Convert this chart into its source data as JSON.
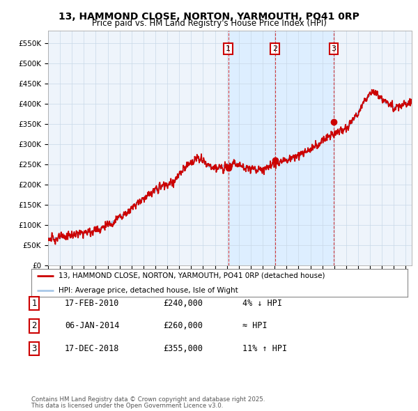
{
  "title": "13, HAMMOND CLOSE, NORTON, YARMOUTH, PO41 0RP",
  "subtitle": "Price paid vs. HM Land Registry's House Price Index (HPI)",
  "legend_line1": "13, HAMMOND CLOSE, NORTON, YARMOUTH, PO41 0RP (detached house)",
  "legend_line2": "HPI: Average price, detached house, Isle of Wight",
  "footer1": "Contains HM Land Registry data © Crown copyright and database right 2025.",
  "footer2": "This data is licensed under the Open Government Licence v3.0.",
  "transactions": [
    {
      "num": 1,
      "date": "17-FEB-2010",
      "price": "£240,000",
      "note": "4% ↓ HPI",
      "x_year": 2010.12
    },
    {
      "num": 2,
      "date": "06-JAN-2014",
      "price": "£260,000",
      "note": "≈ HPI",
      "x_year": 2014.02
    },
    {
      "num": 3,
      "date": "17-DEC-2018",
      "price": "£355,000",
      "note": "11% ↑ HPI",
      "x_year": 2018.96
    }
  ],
  "hpi_color": "#a8c8e8",
  "price_color": "#cc0000",
  "dot_color": "#cc0000",
  "vline_color": "#cc0000",
  "shade_color": "#ddeeff",
  "background_color": "#eef4fb",
  "grid_color": "#c8d8e8",
  "ylim": [
    0,
    580000
  ],
  "xlim_start": 1995.0,
  "xlim_end": 2025.5,
  "yticks": [
    0,
    50000,
    100000,
    150000,
    200000,
    250000,
    300000,
    350000,
    400000,
    450000,
    500000,
    550000
  ],
  "ytick_labels": [
    "£0",
    "£50K",
    "£100K",
    "£150K",
    "£200K",
    "£250K",
    "£300K",
    "£350K",
    "£400K",
    "£450K",
    "£500K",
    "£550K"
  ]
}
